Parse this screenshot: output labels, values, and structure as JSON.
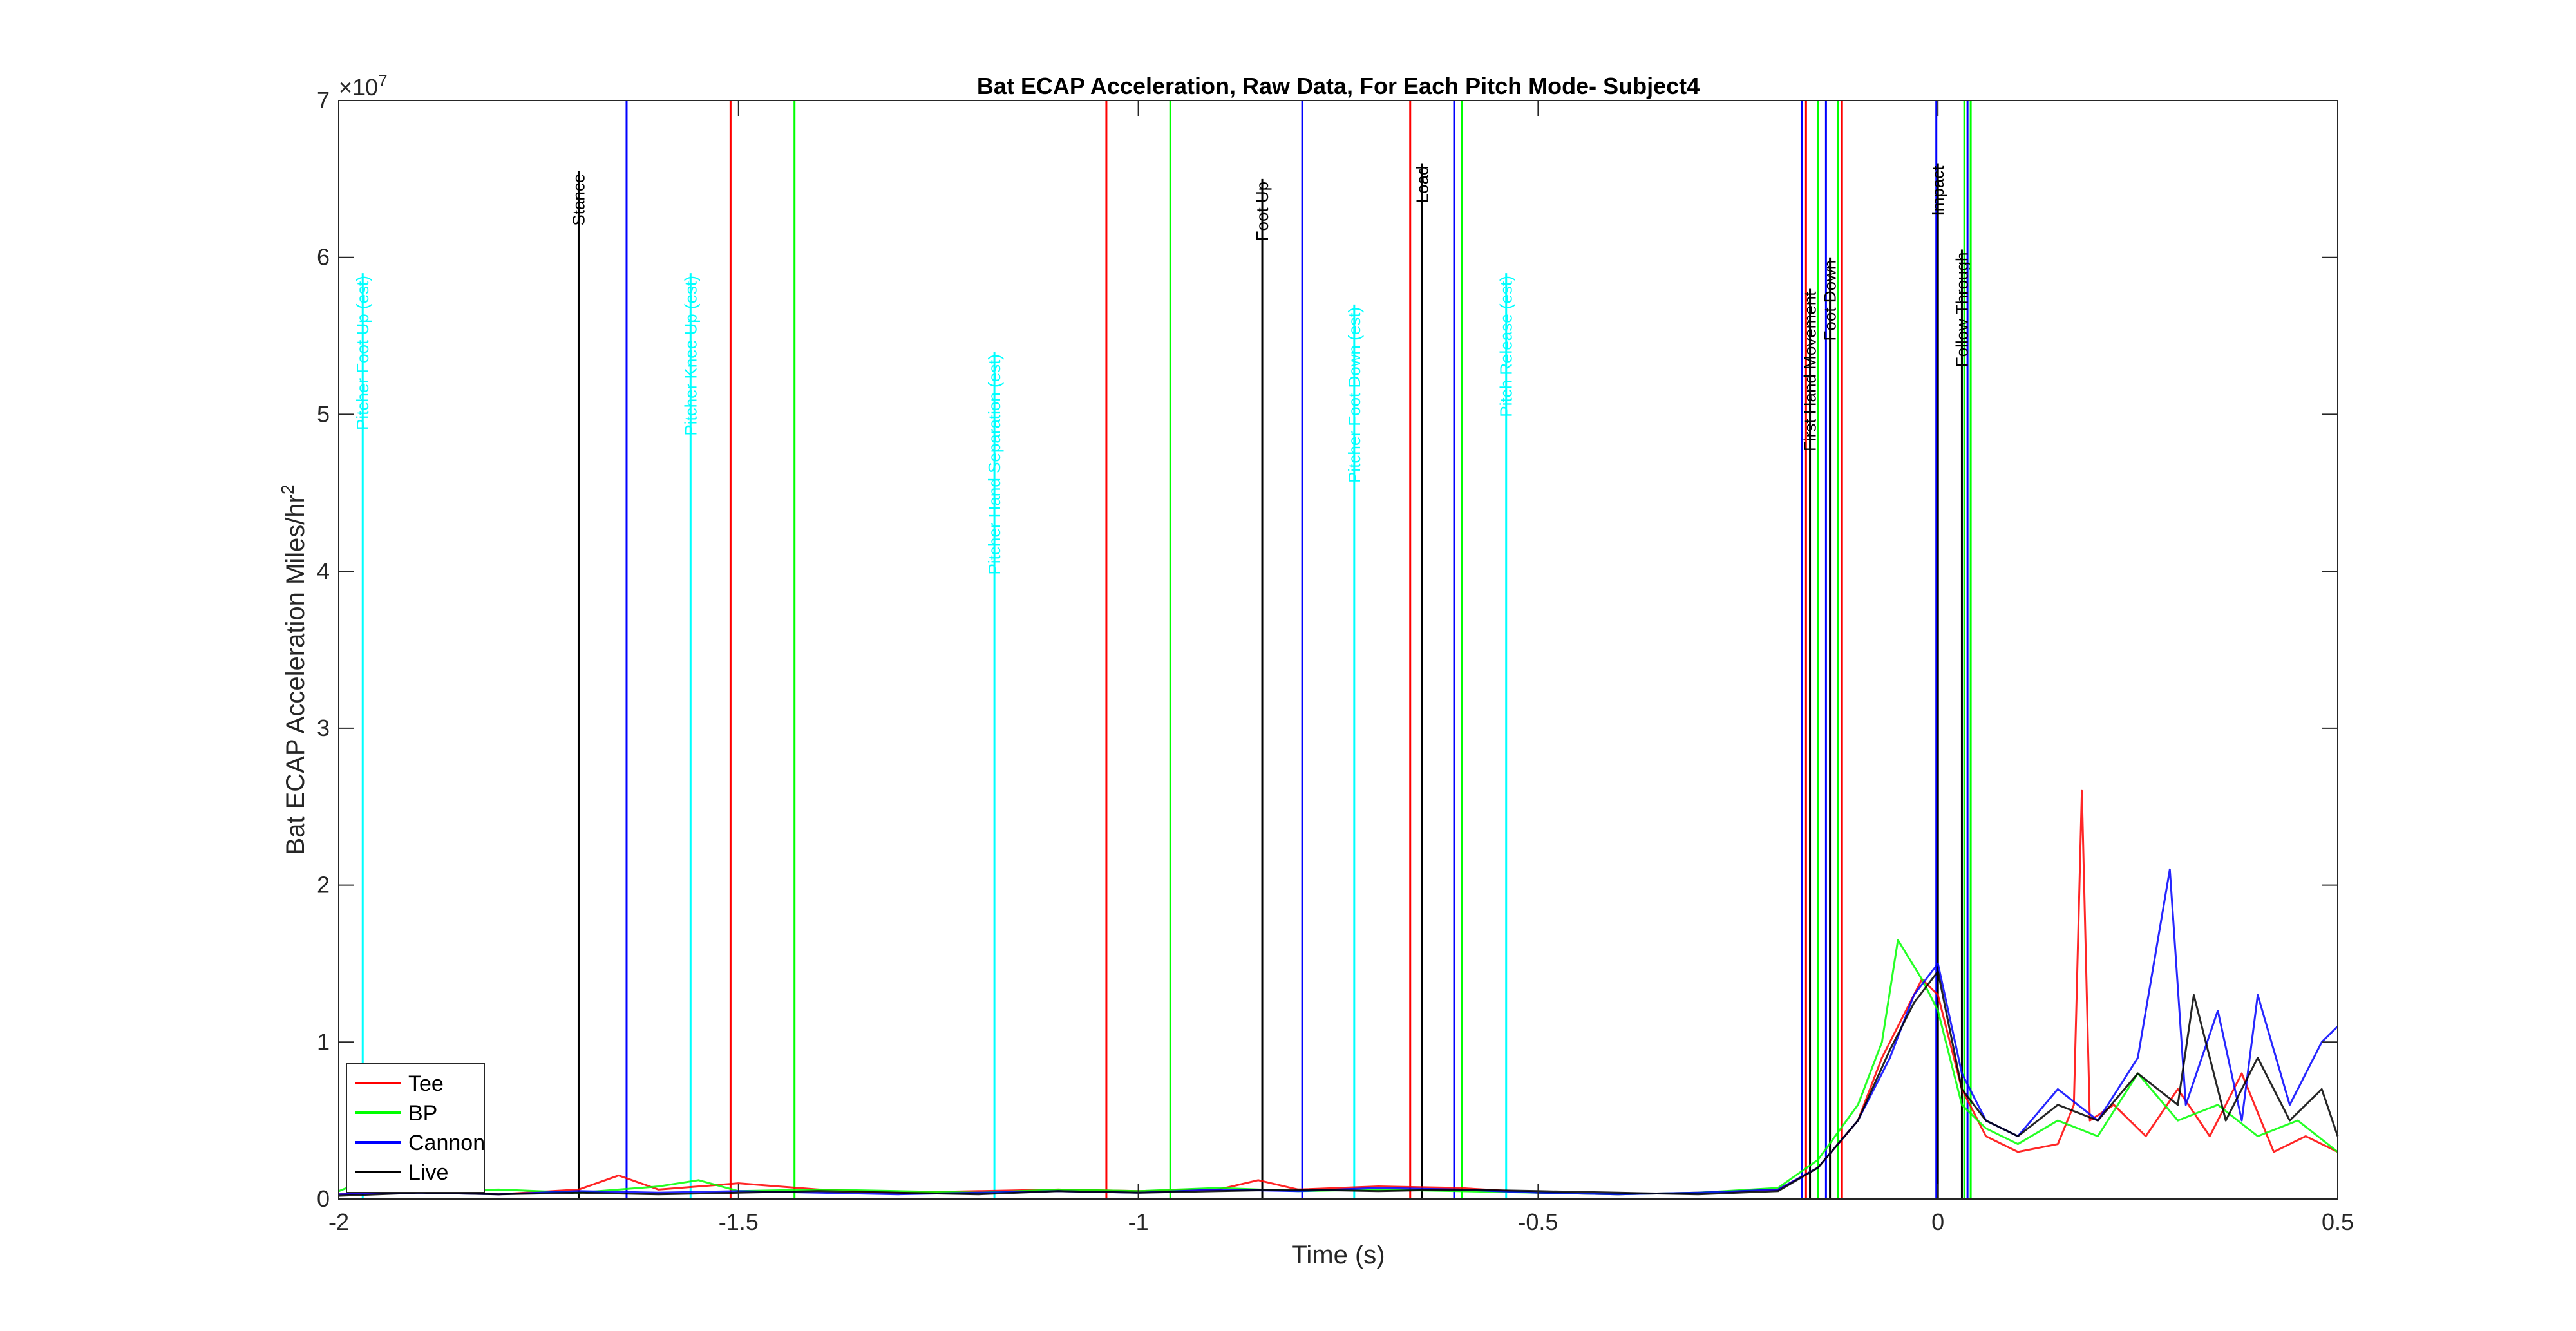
{
  "chart_data": {
    "type": "line",
    "title": "Bat ECAP Acceleration, Raw Data, For Each Pitch Mode- Subject4",
    "xlabel": "Time (s)",
    "ylabel_main": "Bat ECAP Acceleration Miles/hr",
    "ylabel_sup": "2",
    "y_exponent_base": "×10",
    "y_exponent_power": "7",
    "xlim": [
      -2,
      0.5
    ],
    "ylim": [
      0,
      7
    ],
    "x_ticks": [
      {
        "value": -2,
        "label": "-2"
      },
      {
        "value": -1.5,
        "label": "-1.5"
      },
      {
        "value": -1,
        "label": "-1"
      },
      {
        "value": -0.5,
        "label": "-0.5"
      },
      {
        "value": 0,
        "label": "0"
      },
      {
        "value": 0.5,
        "label": "0.5"
      }
    ],
    "y_ticks": [
      {
        "value": 0,
        "label": "0"
      },
      {
        "value": 1,
        "label": "1"
      },
      {
        "value": 2,
        "label": "2"
      },
      {
        "value": 3,
        "label": "3"
      },
      {
        "value": 4,
        "label": "4"
      },
      {
        "value": 5,
        "label": "5"
      },
      {
        "value": 6,
        "label": "6"
      },
      {
        "value": 7,
        "label": "7"
      }
    ],
    "grid": false,
    "legend_position": "bottom-left",
    "series": [
      {
        "name": "Tee",
        "color": "#ff0000",
        "x": [
          -2.0,
          -1.9,
          -1.8,
          -1.7,
          -1.65,
          -1.6,
          -1.5,
          -1.4,
          -1.3,
          -1.2,
          -1.1,
          -1.0,
          -0.9,
          -0.85,
          -0.8,
          -0.7,
          -0.6,
          -0.5,
          -0.4,
          -0.3,
          -0.2,
          -0.15,
          -0.1,
          -0.07,
          -0.04,
          -0.02,
          0.0,
          0.03,
          0.06,
          0.1,
          0.15,
          0.17,
          0.18,
          0.19,
          0.22,
          0.26,
          0.3,
          0.34,
          0.38,
          0.42,
          0.46,
          0.5
        ],
        "values": [
          0.03,
          0.05,
          0.03,
          0.06,
          0.15,
          0.06,
          0.1,
          0.06,
          0.04,
          0.05,
          0.06,
          0.05,
          0.06,
          0.12,
          0.06,
          0.08,
          0.07,
          0.04,
          0.03,
          0.04,
          0.06,
          0.2,
          0.5,
          0.9,
          1.2,
          1.4,
          1.3,
          0.7,
          0.4,
          0.3,
          0.35,
          0.6,
          2.6,
          0.5,
          0.6,
          0.4,
          0.7,
          0.4,
          0.8,
          0.3,
          0.4,
          0.3
        ]
      },
      {
        "name": "BP",
        "color": "#00ff00",
        "x": [
          -2.0,
          -1.95,
          -1.9,
          -1.8,
          -1.7,
          -1.6,
          -1.55,
          -1.5,
          -1.4,
          -1.3,
          -1.2,
          -1.1,
          -1.0,
          -0.9,
          -0.8,
          -0.7,
          -0.6,
          -0.5,
          -0.4,
          -0.3,
          -0.2,
          -0.15,
          -0.1,
          -0.07,
          -0.05,
          -0.02,
          0.0,
          0.03,
          0.06,
          0.1,
          0.15,
          0.2,
          0.25,
          0.3,
          0.35,
          0.4,
          0.45,
          0.5
        ],
        "values": [
          0.05,
          0.15,
          0.05,
          0.06,
          0.04,
          0.08,
          0.12,
          0.05,
          0.06,
          0.05,
          0.04,
          0.06,
          0.05,
          0.07,
          0.05,
          0.06,
          0.05,
          0.04,
          0.03,
          0.04,
          0.07,
          0.25,
          0.6,
          1.0,
          1.65,
          1.4,
          1.2,
          0.6,
          0.45,
          0.35,
          0.5,
          0.4,
          0.8,
          0.5,
          0.6,
          0.4,
          0.5,
          0.3
        ]
      },
      {
        "name": "Cannon",
        "color": "#0000ff",
        "x": [
          -2.0,
          -1.9,
          -1.8,
          -1.7,
          -1.6,
          -1.5,
          -1.4,
          -1.3,
          -1.2,
          -1.1,
          -1.0,
          -0.9,
          -0.8,
          -0.7,
          -0.6,
          -0.5,
          -0.4,
          -0.3,
          -0.2,
          -0.15,
          -0.1,
          -0.06,
          -0.03,
          0.0,
          0.03,
          0.06,
          0.1,
          0.15,
          0.2,
          0.25,
          0.29,
          0.31,
          0.35,
          0.38,
          0.4,
          0.44,
          0.48,
          0.5
        ],
        "values": [
          0.03,
          0.04,
          0.03,
          0.05,
          0.04,
          0.05,
          0.04,
          0.03,
          0.04,
          0.05,
          0.04,
          0.06,
          0.05,
          0.07,
          0.06,
          0.04,
          0.03,
          0.04,
          0.06,
          0.2,
          0.5,
          0.9,
          1.3,
          1.5,
          0.8,
          0.5,
          0.4,
          0.7,
          0.5,
          0.9,
          2.1,
          0.6,
          1.2,
          0.5,
          1.3,
          0.6,
          1.0,
          1.1
        ]
      },
      {
        "name": "Live",
        "color": "#000000",
        "x": [
          -2.0,
          -1.9,
          -1.8,
          -1.7,
          -1.6,
          -1.5,
          -1.4,
          -1.3,
          -1.2,
          -1.1,
          -1.0,
          -0.9,
          -0.8,
          -0.7,
          -0.6,
          -0.5,
          -0.4,
          -0.3,
          -0.2,
          -0.15,
          -0.1,
          -0.06,
          -0.03,
          0.0,
          0.03,
          0.06,
          0.1,
          0.15,
          0.2,
          0.25,
          0.3,
          0.32,
          0.36,
          0.4,
          0.44,
          0.48,
          0.5
        ],
        "values": [
          0.02,
          0.04,
          0.03,
          0.04,
          0.03,
          0.04,
          0.05,
          0.04,
          0.03,
          0.05,
          0.04,
          0.05,
          0.06,
          0.05,
          0.06,
          0.05,
          0.04,
          0.03,
          0.05,
          0.2,
          0.5,
          0.95,
          1.25,
          1.45,
          0.7,
          0.5,
          0.4,
          0.6,
          0.5,
          0.8,
          0.6,
          1.3,
          0.5,
          0.9,
          0.5,
          0.7,
          0.4
        ]
      }
    ],
    "event_lines": [
      {
        "x": -1.97,
        "color": "#00ffff",
        "label": "Pitcher Foot Up (est)",
        "top": 5.9
      },
      {
        "x": -1.7,
        "color": "#000000",
        "label": "Stance",
        "top": 6.55
      },
      {
        "x": -1.64,
        "color": "#0000ff",
        "label": "",
        "top": 7
      },
      {
        "x": -1.56,
        "color": "#00ffff",
        "label": "Pitcher Knee Up (est)",
        "top": 5.9
      },
      {
        "x": -1.51,
        "color": "#ff0000",
        "label": "",
        "top": 7
      },
      {
        "x": -1.43,
        "color": "#00ff00",
        "label": "",
        "top": 7
      },
      {
        "x": -1.18,
        "color": "#00ffff",
        "label": "Pitcher Hand Separation (est)",
        "top": 5.4
      },
      {
        "x": -1.04,
        "color": "#ff0000",
        "label": "",
        "top": 7
      },
      {
        "x": -0.96,
        "color": "#00ff00",
        "label": "",
        "top": 7
      },
      {
        "x": -0.845,
        "color": "#000000",
        "label": "Foot Up",
        "top": 6.5
      },
      {
        "x": -0.795,
        "color": "#0000ff",
        "label": "",
        "top": 7
      },
      {
        "x": -0.73,
        "color": "#00ffff",
        "label": "Pitcher Foot Down (est)",
        "top": 5.7
      },
      {
        "x": -0.66,
        "color": "#ff0000",
        "label": "",
        "top": 7
      },
      {
        "x": -0.645,
        "color": "#000000",
        "label": "Load",
        "top": 6.6
      },
      {
        "x": -0.605,
        "color": "#0000ff",
        "label": "",
        "top": 7
      },
      {
        "x": -0.595,
        "color": "#00ff00",
        "label": "",
        "top": 7
      },
      {
        "x": -0.54,
        "color": "#00ffff",
        "label": "Pitch Release (est)",
        "top": 5.9
      },
      {
        "x": -0.17,
        "color": "#0000ff",
        "label": "",
        "top": 7
      },
      {
        "x": -0.165,
        "color": "#ff0000",
        "label": "",
        "top": 7
      },
      {
        "x": -0.16,
        "color": "#000000",
        "label": "First Hand Movement",
        "top": 5.8
      },
      {
        "x": -0.15,
        "color": "#00ff00",
        "label": "",
        "top": 7
      },
      {
        "x": -0.14,
        "color": "#0000ff",
        "label": "",
        "top": 7
      },
      {
        "x": -0.135,
        "color": "#000000",
        "label": "Foot Down",
        "top": 6.0
      },
      {
        "x": -0.125,
        "color": "#00ff00",
        "label": "",
        "top": 7
      },
      {
        "x": -0.12,
        "color": "#ff0000",
        "label": "",
        "top": 7
      },
      {
        "x": -0.002,
        "color": "#0000ff",
        "label": "",
        "top": 7
      },
      {
        "x": 0.0,
        "color": "#000000",
        "label": "Impact",
        "top": 6.6
      },
      {
        "x": 0.033,
        "color": "#00ff00",
        "label": "",
        "top": 7
      },
      {
        "x": 0.037,
        "color": "#0000ff",
        "label": "",
        "top": 7
      },
      {
        "x": 0.03,
        "color": "#000000",
        "label": "Follow Through",
        "top": 6.05
      },
      {
        "x": 0.041,
        "color": "#00ff00",
        "label": "",
        "top": 7
      }
    ]
  }
}
